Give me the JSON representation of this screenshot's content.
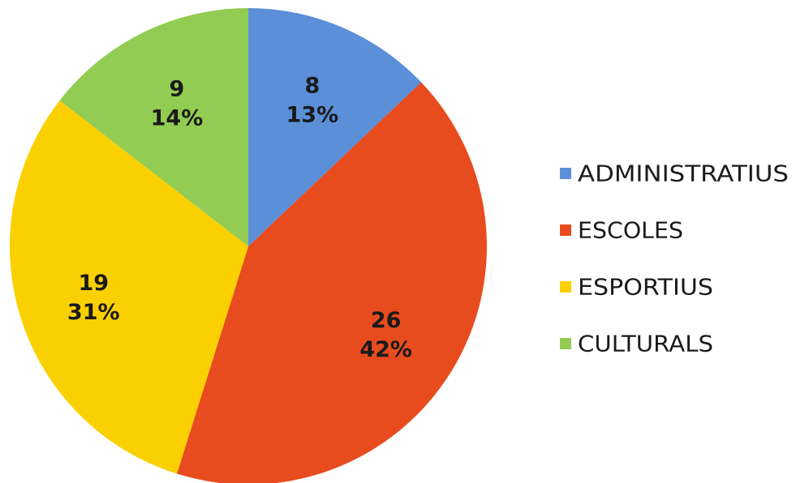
{
  "chart_data": {
    "type": "pie",
    "title": "",
    "legend_position": "right",
    "slices": [
      {
        "label": "ADMINISTRATIUS",
        "value": 8,
        "percent_label": "13%",
        "color": "#5b8fd8"
      },
      {
        "label": "ESCOLES",
        "value": 26,
        "percent_label": "42%",
        "color": "#e84c1e"
      },
      {
        "label": "ESPORTIUS",
        "value": 19,
        "percent_label": "31%",
        "color": "#fbd000"
      },
      {
        "label": "CULTURALS",
        "value": 9,
        "percent_label": "14%",
        "color": "#93cc52"
      }
    ]
  }
}
